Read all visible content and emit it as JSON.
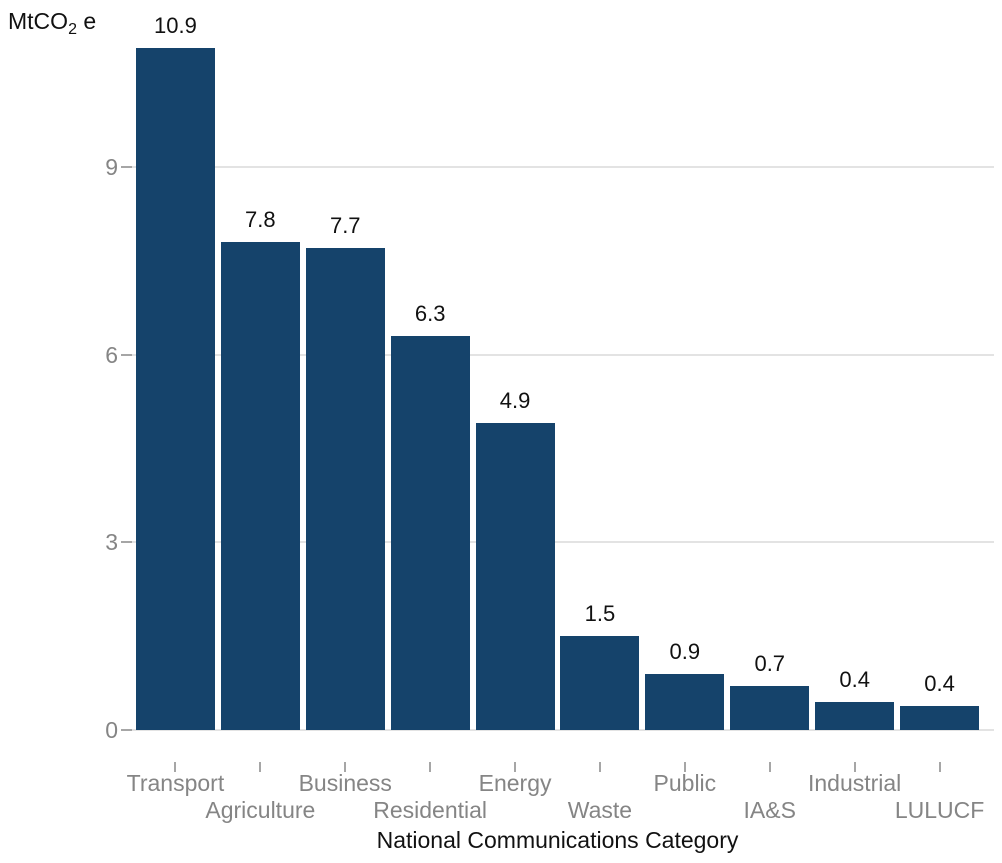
{
  "chart_data": {
    "type": "bar",
    "title": "",
    "categories": [
      "Transport",
      "Agriculture",
      "Business",
      "Residential",
      "Energy",
      "Waste",
      "Public",
      "IA&S",
      "Industrial",
      "LULUCF"
    ],
    "values": [
      10.9,
      7.8,
      7.7,
      6.3,
      4.9,
      1.5,
      0.9,
      0.7,
      0.45,
      0.38
    ],
    "value_labels": [
      "10.9",
      "7.8",
      "7.7",
      "6.3",
      "4.9",
      "1.5",
      "0.9",
      "0.7",
      "0.4",
      "0.4"
    ],
    "xlabel": "National Communications Category",
    "ylabel": {
      "prefix": "MtCO",
      "subscript": "2",
      "suffix": " e"
    },
    "y_ticks": [
      0,
      3,
      6,
      9
    ],
    "ylim": [
      0,
      10.9
    ],
    "grid": "horizontal-only",
    "legend": "none",
    "label_rows": [
      1,
      2,
      1,
      2,
      1,
      2,
      1,
      2,
      1,
      2
    ],
    "colors": {
      "bar": "#15436B",
      "gridline": "#E3E3E3",
      "axis_text": "#858585",
      "tick_mark": "#A6A6A6",
      "value_label": "#111111",
      "background": "#FFFFFF"
    }
  }
}
